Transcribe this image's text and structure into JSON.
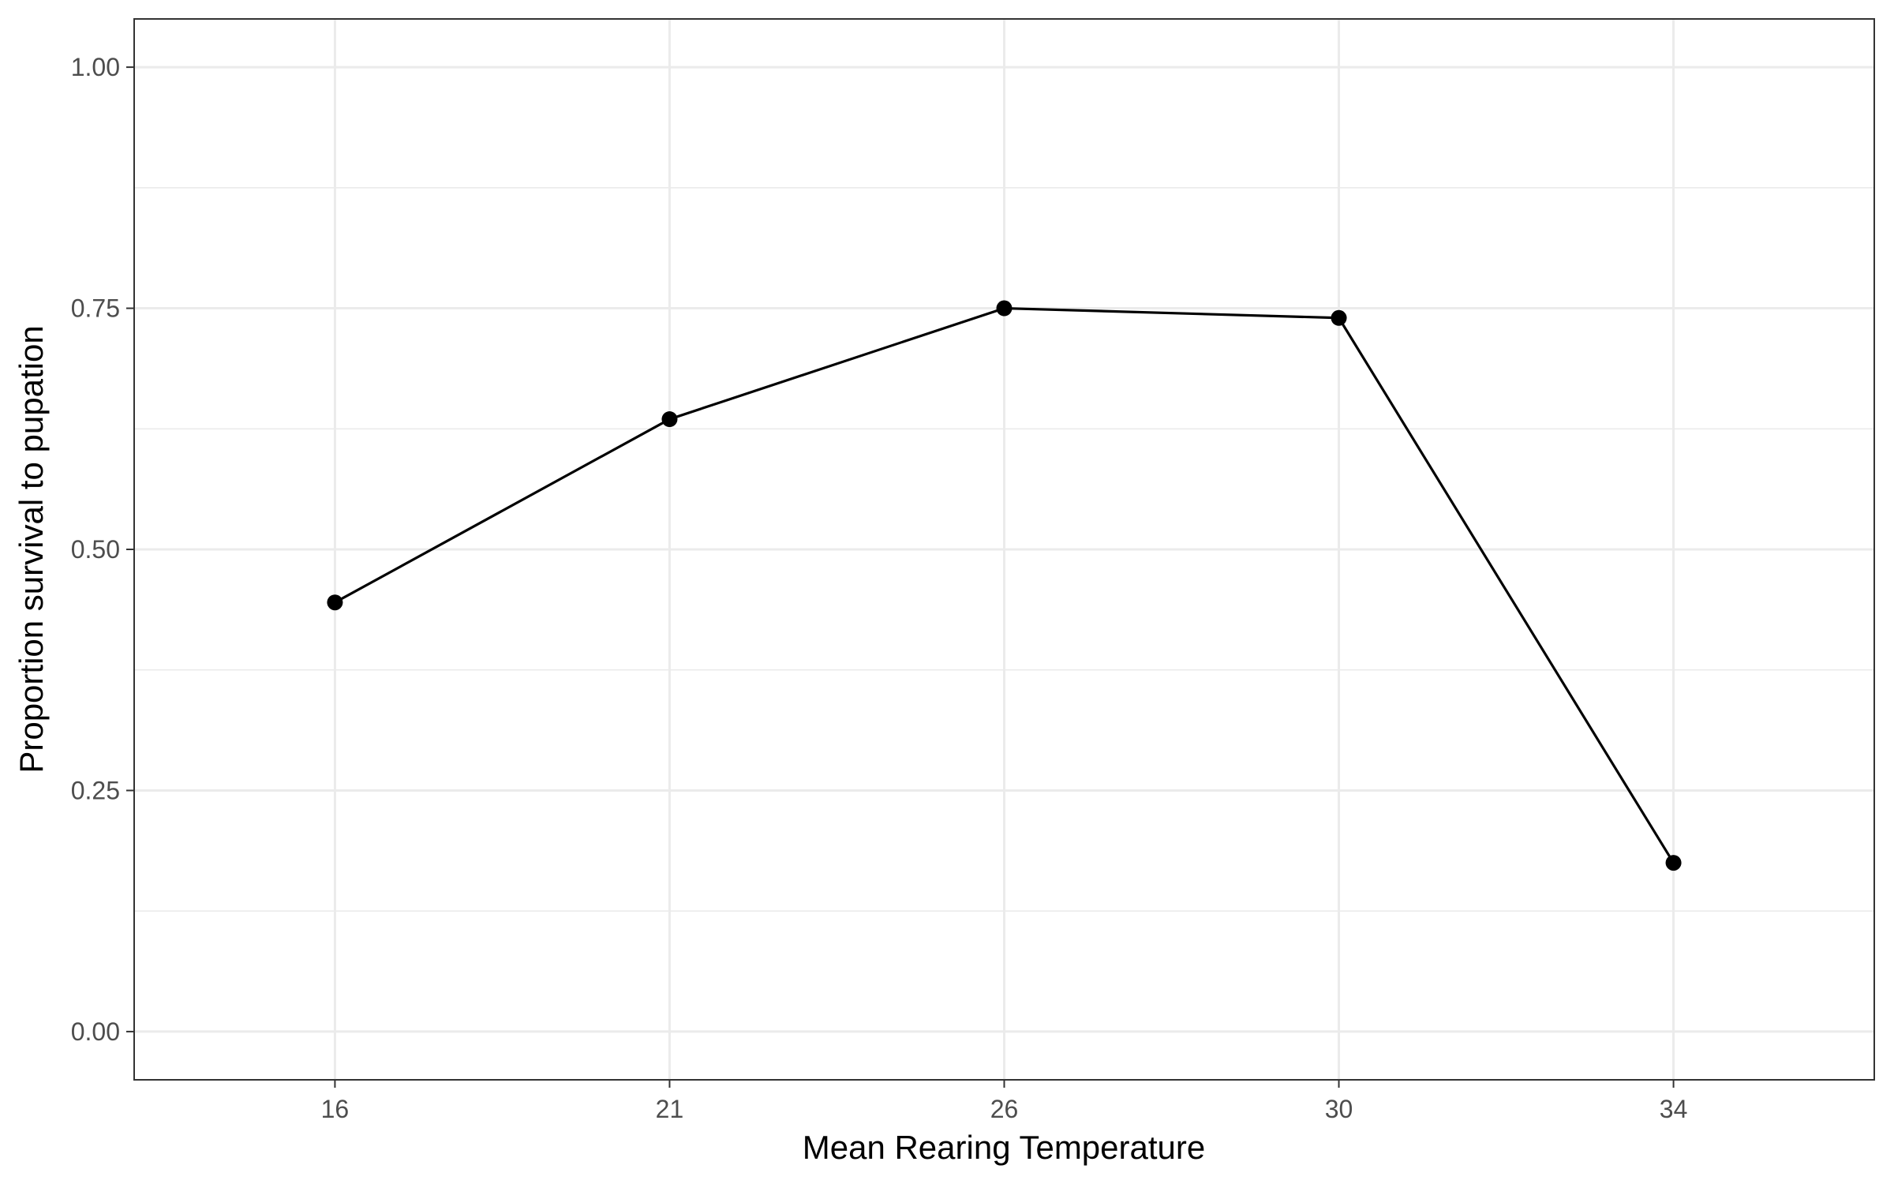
{
  "chart_data": {
    "type": "line",
    "title": "",
    "xlabel": "Mean Rearing Temperature",
    "ylabel": "Proportion survival to pupation",
    "categories": [
      "16",
      "21",
      "26",
      "30",
      "34"
    ],
    "series": [
      {
        "values": [
          0.445,
          0.635,
          0.75,
          0.74,
          0.175
        ]
      }
    ],
    "ylim": [
      -0.05,
      1.05
    ],
    "y_ticks": [
      0.0,
      0.25,
      0.5,
      0.75,
      1.0
    ],
    "y_tick_labels": [
      "0.00",
      "0.25",
      "0.50",
      "0.75",
      "1.00"
    ],
    "y_minor_ticks": [
      0.125,
      0.375,
      0.625,
      0.875
    ],
    "grid": true,
    "legend": "none",
    "colors": {
      "line": "#000000",
      "point": "#000000",
      "grid": "#ebebeb",
      "panel_border": "#333333",
      "background": "#ffffff"
    }
  }
}
